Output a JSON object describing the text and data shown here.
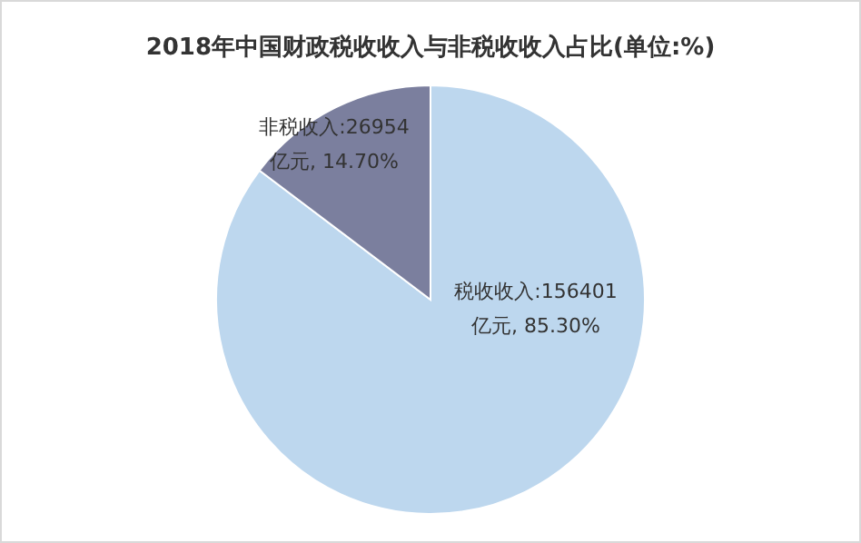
{
  "chart_data": {
    "type": "pie",
    "title": "2018年中国财政税收收入与非税收收入占比(单位:%)",
    "categories": [
      "税收收入",
      "非税收入"
    ],
    "values": [
      156401,
      26954
    ],
    "value_labels": [
      "156401\n亿元, 85.30%",
      "26954\n亿元, 14.70%"
    ],
    "colors": [
      "#bdd7ee",
      "#7b7f9e"
    ]
  }
}
